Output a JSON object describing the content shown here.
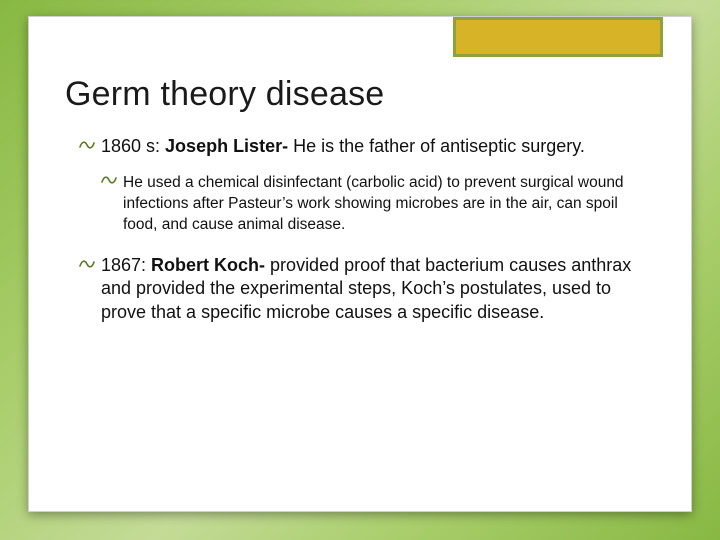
{
  "slide": {
    "title": "Germ theory disease",
    "bullets": [
      {
        "level": 1,
        "prefix": "1860 s: ",
        "bold": "Joseph Lister- ",
        "rest": "He is the father of antiseptic surgery."
      },
      {
        "level": 2,
        "prefix": "",
        "bold": "",
        "rest": "He used a chemical disinfectant (carbolic acid) to prevent surgical wound infections after Pasteur’s work showing microbes are in the air, can spoil food, and cause animal disease."
      },
      {
        "level": 1,
        "prefix": "1867: ",
        "bold": "Robert Koch- ",
        "rest": "provided proof that bacterium causes anthrax and provided the experimental steps, Koch’s postulates, used to prove that a specific microbe causes a specific disease."
      }
    ]
  },
  "style": {
    "background_gradient": [
      "#88b843",
      "#a8cd6a",
      "#c4db97",
      "#a8cd6a",
      "#88b843"
    ],
    "card_bg": "#ffffff",
    "accent_outer": "#8aa43b",
    "accent_inner": "#d7b427",
    "bullet_glyph_color": "#5a7a1f",
    "bullet_glyph": "་0",
    "title_fontsize": 34,
    "body_l1_fontsize": 18,
    "body_l2_fontsize": 15.5
  }
}
